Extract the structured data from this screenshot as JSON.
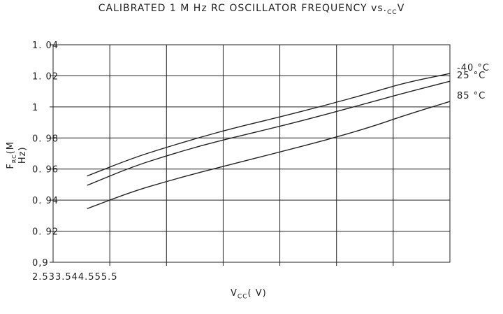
{
  "chart_data": {
    "type": "line",
    "title": {
      "main": "CALIBRATED 1 M Hz RC OSCILLATOR FREQUENCY vs.",
      "sub": "CC",
      "tail": "V"
    },
    "xlabel": {
      "main": "V",
      "sub": "CC",
      "tail": "( V)"
    },
    "ylabel": {
      "main": "F",
      "sub": "RC",
      "tail": "(M Hz)"
    },
    "x_tick_text": "2.533.544.555.5",
    "y_ticks": [
      {
        "value": 0.9,
        "label": "0,9"
      },
      {
        "value": 0.92,
        "label": "0. 92"
      },
      {
        "value": 0.94,
        "label": "0. 94"
      },
      {
        "value": 0.96,
        "label": "0. 96"
      },
      {
        "value": 0.98,
        "label": "0. 98"
      },
      {
        "value": 1.0,
        "label": "1"
      },
      {
        "value": 1.02,
        "label": "1. 02"
      },
      {
        "value": 1.04,
        "label": "1. 04"
      }
    ],
    "xlim": [
      2.0,
      5.5
    ],
    "x_gridlines": [
      2.5,
      3.0,
      3.5,
      4.0,
      4.5,
      5.0
    ],
    "ylim": [
      0.9,
      1.04
    ],
    "grid": true,
    "series": [
      {
        "name": "-40 °C",
        "x": [
          2.3,
          2.7,
          3.0,
          3.3,
          3.6,
          4.0,
          4.4,
          4.8,
          5.1,
          5.5
        ],
        "y": [
          0.9555,
          0.967,
          0.974,
          0.9805,
          0.9865,
          0.9935,
          1.001,
          1.009,
          1.0155,
          1.0215
        ]
      },
      {
        "name": "25 °C",
        "x": [
          2.3,
          2.7,
          3.0,
          3.3,
          3.6,
          4.0,
          4.4,
          4.8,
          5.1,
          5.5
        ],
        "y": [
          0.9495,
          0.9615,
          0.9685,
          0.975,
          0.9805,
          0.9875,
          0.995,
          1.003,
          1.009,
          1.0165
        ]
      },
      {
        "name": "85 °C",
        "x": [
          2.3,
          2.7,
          3.0,
          3.3,
          3.6,
          4.0,
          4.4,
          4.8,
          5.1,
          5.5
        ],
        "y": [
          0.9345,
          0.9455,
          0.952,
          0.958,
          0.9635,
          0.971,
          0.9785,
          0.987,
          0.9945,
          1.0035
        ]
      }
    ],
    "legend_placement": "right, at line ends"
  }
}
